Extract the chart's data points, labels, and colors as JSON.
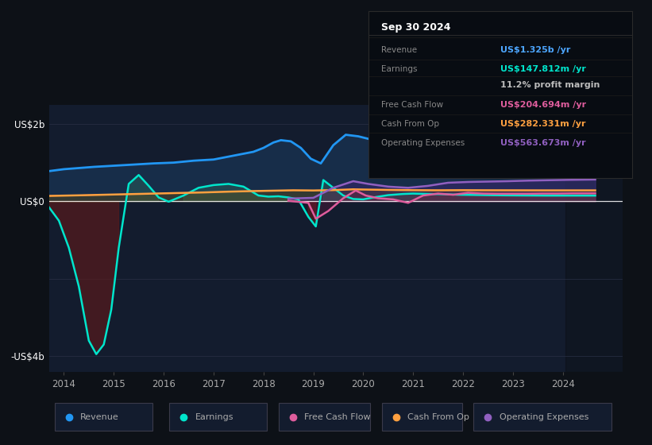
{
  "background_color": "#0d1117",
  "plot_bg_color": "#131c2e",
  "ylim": [
    -4400000000.0,
    2500000000.0
  ],
  "xlim": [
    2013.7,
    2025.2
  ],
  "yticks_vals": [
    -4000000000.0,
    0,
    2000000000.0
  ],
  "ytick_labels": [
    "-US$4b",
    "US$0",
    "US$2b"
  ],
  "xticks": [
    2014,
    2015,
    2016,
    2017,
    2018,
    2019,
    2020,
    2021,
    2022,
    2023,
    2024
  ],
  "info_title": "Sep 30 2024",
  "info_rows": [
    {
      "label": "Revenue",
      "value": "US$1.325b /yr",
      "vcolor": "#4da6ff"
    },
    {
      "label": "Earnings",
      "value": "US$147.812m /yr",
      "vcolor": "#00e5cc"
    },
    {
      "label": "",
      "value": "11.2% profit margin",
      "vcolor": "#cccccc"
    },
    {
      "label": "Free Cash Flow",
      "value": "US$204.694m /yr",
      "vcolor": "#ff69b4"
    },
    {
      "label": "Cash From Op",
      "value": "US$282.331m /yr",
      "vcolor": "#ffa500"
    },
    {
      "label": "Operating Expenses",
      "value": "US$563.673m /yr",
      "vcolor": "#9370db"
    }
  ],
  "legend_items": [
    {
      "label": "Revenue",
      "color": "#2196F3"
    },
    {
      "label": "Earnings",
      "color": "#00e5cc"
    },
    {
      "label": "Free Cash Flow",
      "color": "#de5d9d"
    },
    {
      "label": "Cash From Op",
      "color": "#ffa040"
    },
    {
      "label": "Operating Expenses",
      "color": "#9060c0"
    }
  ],
  "revenue_x": [
    2013.7,
    2014.0,
    2014.3,
    2014.6,
    2015.0,
    2015.4,
    2015.8,
    2016.2,
    2016.6,
    2017.0,
    2017.4,
    2017.8,
    2018.0,
    2018.2,
    2018.35,
    2018.55,
    2018.75,
    2018.95,
    2019.15,
    2019.4,
    2019.65,
    2019.9,
    2020.15,
    2020.5,
    2020.9,
    2021.3,
    2021.65,
    2022.0,
    2022.25,
    2022.5,
    2022.75,
    2023.0,
    2023.3,
    2023.6,
    2023.9,
    2024.1,
    2024.4,
    2024.65
  ],
  "revenue_y": [
    780000000.0,
    830000000.0,
    860000000.0,
    890000000.0,
    920000000.0,
    950000000.0,
    980000000.0,
    1000000000.0,
    1050000000.0,
    1080000000.0,
    1180000000.0,
    1280000000.0,
    1380000000.0,
    1520000000.0,
    1580000000.0,
    1550000000.0,
    1380000000.0,
    1100000000.0,
    980000000.0,
    1450000000.0,
    1720000000.0,
    1680000000.0,
    1600000000.0,
    1680000000.0,
    1750000000.0,
    1820000000.0,
    1880000000.0,
    1850000000.0,
    1820000000.0,
    1780000000.0,
    1720000000.0,
    1650000000.0,
    1550000000.0,
    1450000000.0,
    1380000000.0,
    1350000000.0,
    1330000000.0,
    1325000000.0
  ],
  "earnings_x": [
    2013.7,
    2013.9,
    2014.1,
    2014.3,
    2014.5,
    2014.65,
    2014.8,
    2014.95,
    2015.1,
    2015.3,
    2015.5,
    2015.7,
    2015.9,
    2016.1,
    2016.4,
    2016.7,
    2017.0,
    2017.3,
    2017.6,
    2017.9,
    2018.1,
    2018.3,
    2018.5,
    2018.7,
    2018.9,
    2019.05,
    2019.2,
    2019.4,
    2019.6,
    2019.8,
    2020.0,
    2020.2,
    2020.5,
    2020.8,
    2021.0,
    2021.3,
    2021.6,
    2021.9,
    2022.2,
    2022.5,
    2022.8,
    2023.1,
    2023.4,
    2023.7,
    2024.0,
    2024.3,
    2024.65
  ],
  "earnings_y": [
    -150000000.0,
    -500000000.0,
    -1200000000.0,
    -2200000000.0,
    -3600000000.0,
    -3950000000.0,
    -3700000000.0,
    -2800000000.0,
    -1200000000.0,
    450000000.0,
    680000000.0,
    400000000.0,
    100000000.0,
    -10000000.0,
    150000000.0,
    350000000.0,
    420000000.0,
    450000000.0,
    380000000.0,
    150000000.0,
    120000000.0,
    130000000.0,
    100000000.0,
    50000000.0,
    -400000000.0,
    -650000000.0,
    550000000.0,
    350000000.0,
    150000000.0,
    60000000.0,
    50000000.0,
    100000000.0,
    160000000.0,
    190000000.0,
    200000000.0,
    190000000.0,
    185000000.0,
    170000000.0,
    165000000.0,
    160000000.0,
    155000000.0,
    152000000.0,
    150000000.0,
    148000000.0,
    148000000.0,
    148000000.0,
    147800000.0
  ],
  "cashop_x": [
    2013.7,
    2014.3,
    2014.8,
    2015.3,
    2015.8,
    2016.3,
    2016.8,
    2017.3,
    2017.8,
    2018.2,
    2018.6,
    2019.0,
    2019.4,
    2019.8,
    2020.0,
    2020.5,
    2021.0,
    2021.5,
    2022.0,
    2022.4,
    2022.8,
    2023.2,
    2023.6,
    2024.0,
    2024.4,
    2024.65
  ],
  "cashop_y": [
    140000000.0,
    155000000.0,
    170000000.0,
    185000000.0,
    200000000.0,
    215000000.0,
    230000000.0,
    250000000.0,
    265000000.0,
    275000000.0,
    285000000.0,
    280000000.0,
    290000000.0,
    310000000.0,
    305000000.0,
    295000000.0,
    288000000.0,
    285000000.0,
    288000000.0,
    286000000.0,
    285000000.0,
    284000000.0,
    283000000.0,
    283000000.0,
    283000000.0,
    283000000.0
  ],
  "fcf_x": [
    2018.5,
    2018.9,
    2019.05,
    2019.3,
    2019.6,
    2019.85,
    2020.05,
    2020.3,
    2020.6,
    2020.9,
    2021.2,
    2021.5,
    2021.8,
    2022.1,
    2022.4,
    2022.7,
    2023.0,
    2023.3,
    2023.6,
    2023.9,
    2024.2,
    2024.65
  ],
  "fcf_y": [
    15000000.0,
    -40000000.0,
    -450000000.0,
    -250000000.0,
    80000000.0,
    280000000.0,
    150000000.0,
    80000000.0,
    50000000.0,
    -40000000.0,
    150000000.0,
    200000000.0,
    170000000.0,
    220000000.0,
    200000000.0,
    195000000.0,
    195000000.0,
    195000000.0,
    200000000.0,
    200000000.0,
    205000000.0,
    205000000.0
  ],
  "opex_x": [
    2018.5,
    2019.0,
    2019.4,
    2019.8,
    2020.1,
    2020.5,
    2020.9,
    2021.3,
    2021.7,
    2022.1,
    2022.5,
    2022.9,
    2023.3,
    2023.7,
    2024.1,
    2024.65
  ],
  "opex_y": [
    70000000.0,
    90000000.0,
    350000000.0,
    520000000.0,
    450000000.0,
    380000000.0,
    350000000.0,
    400000000.0,
    480000000.0,
    500000000.0,
    510000000.0,
    520000000.0,
    535000000.0,
    545000000.0,
    555000000.0,
    564000000.0
  ]
}
